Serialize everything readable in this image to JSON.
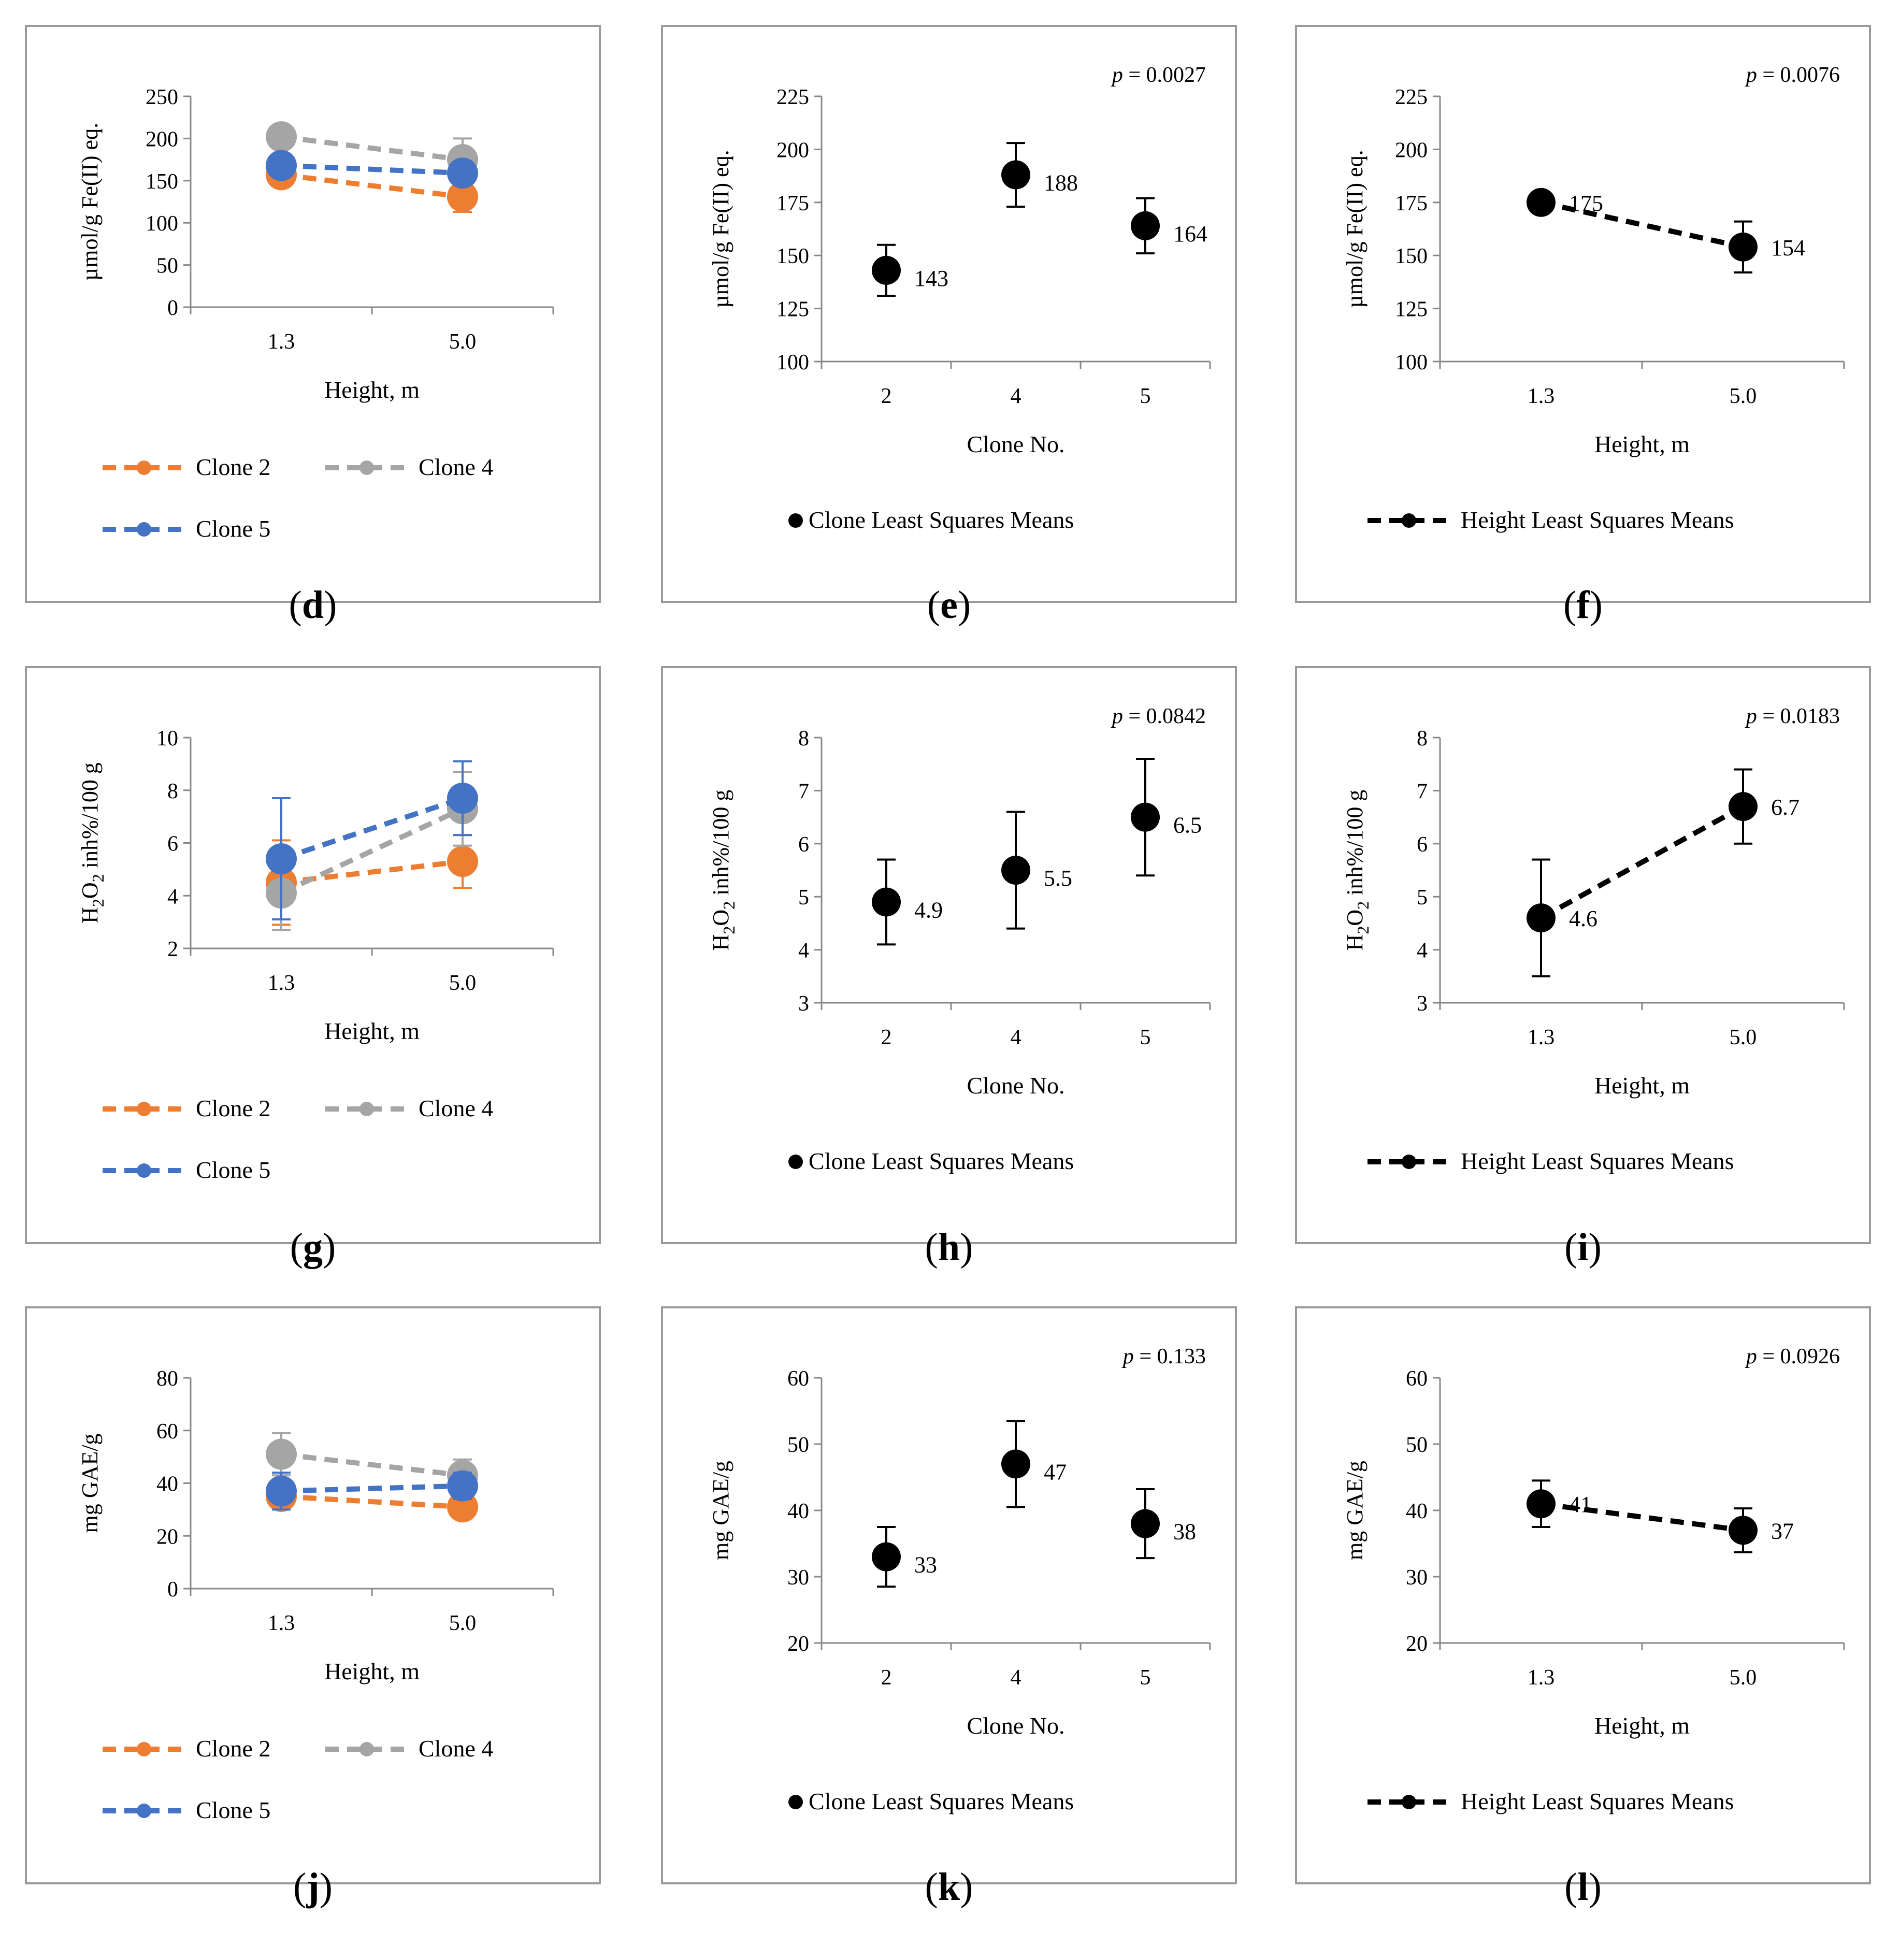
{
  "colors": {
    "clone2": "#ED7D31",
    "clone4": "#A5A5A5",
    "clone5": "#4472C4",
    "black": "#000000",
    "axis": "#888888",
    "frame": "#9a9a9a"
  },
  "chart_data": [
    {
      "id": "d",
      "type": "line",
      "caption": "d",
      "ylabel": "µmol/g Fe(II) eq.",
      "xlabel": "Height, m",
      "ylim": [
        0,
        250
      ],
      "yticks": [
        0,
        50,
        100,
        150,
        200,
        250
      ],
      "categories": [
        "1.3",
        "5.0"
      ],
      "pvalue": "",
      "series": [
        {
          "name": "Clone 2",
          "color": "#ED7D31",
          "values": [
            157,
            131
          ],
          "err": [
            10,
            18
          ]
        },
        {
          "name": "Clone 4",
          "color": "#A5A5A5",
          "values": [
            202,
            175
          ],
          "err": [
            10,
            25
          ]
        },
        {
          "name": "Clone 5",
          "color": "#4472C4",
          "values": [
            168,
            159
          ],
          "err": [
            10,
            12
          ]
        }
      ],
      "legend": [
        "Clone 2",
        "Clone 4",
        "Clone 5"
      ]
    },
    {
      "id": "e",
      "type": "scatter",
      "caption": "e",
      "ylabel": "µmol/g Fe(II) eq.",
      "xlabel": "Clone No.",
      "ylim": [
        100,
        225
      ],
      "yticks": [
        100,
        125,
        150,
        175,
        200,
        225
      ],
      "categories": [
        "2",
        "4",
        "5"
      ],
      "pvalue": "0.0027",
      "series": [
        {
          "name": "Clone Least Squares Means",
          "color": "#000000",
          "values": [
            143,
            188,
            164
          ],
          "err": [
            12,
            15,
            13
          ],
          "labels": [
            "143",
            "188",
            "164"
          ]
        }
      ],
      "legend": [
        "Clone Least Squares Means"
      ]
    },
    {
      "id": "f",
      "type": "line",
      "caption": "f",
      "ylabel": "µmol/g Fe(II) eq.",
      "xlabel": "Height, m",
      "ylim": [
        100,
        225
      ],
      "yticks": [
        100,
        125,
        150,
        175,
        200,
        225
      ],
      "categories": [
        "1.3",
        "5.0"
      ],
      "pvalue": "0.0076",
      "series": [
        {
          "name": "Height Least Squares Means",
          "color": "#000000",
          "values": [
            175,
            154
          ],
          "err": [
            0,
            12
          ],
          "labels": [
            "175",
            "154"
          ]
        }
      ],
      "legend": [
        "Height Least Squares Means"
      ]
    },
    {
      "id": "g",
      "type": "line",
      "caption": "g",
      "ylabel": "H2O2 inh%/100 g",
      "xlabel": "Height, m",
      "ylim": [
        2,
        10
      ],
      "yticks": [
        2,
        4,
        6,
        8,
        10
      ],
      "categories": [
        "1.3",
        "5.0"
      ],
      "pvalue": "",
      "series": [
        {
          "name": "Clone 2",
          "color": "#ED7D31",
          "values": [
            4.5,
            5.3
          ],
          "err": [
            1.6,
            1.0
          ]
        },
        {
          "name": "Clone 4",
          "color": "#A5A5A5",
          "values": [
            4.1,
            7.3
          ],
          "err": [
            1.4,
            1.4
          ]
        },
        {
          "name": "Clone 5",
          "color": "#4472C4",
          "values": [
            5.4,
            7.7
          ],
          "err": [
            2.3,
            1.4
          ]
        }
      ],
      "legend": [
        "Clone 2",
        "Clone 4",
        "Clone 5"
      ]
    },
    {
      "id": "h",
      "type": "scatter",
      "caption": "h",
      "ylabel": "H2O2 inh%/100 g",
      "xlabel": "Clone No.",
      "ylim": [
        3,
        8
      ],
      "yticks": [
        3,
        4,
        5,
        6,
        7,
        8
      ],
      "categories": [
        "2",
        "4",
        "5"
      ],
      "pvalue": "0.0842",
      "series": [
        {
          "name": "Clone Least Squares Means",
          "color": "#000000",
          "values": [
            4.9,
            5.5,
            6.5
          ],
          "err": [
            0.8,
            1.1,
            1.1
          ],
          "labels": [
            "4.9",
            "5.5",
            "6.5"
          ]
        }
      ],
      "legend": [
        "Clone Least Squares Means"
      ]
    },
    {
      "id": "i",
      "type": "line",
      "caption": "i",
      "ylabel": "H2O2 inh%/100 g",
      "xlabel": "Height, m",
      "ylim": [
        3,
        8
      ],
      "yticks": [
        3,
        4,
        5,
        6,
        7,
        8
      ],
      "categories": [
        "1.3",
        "5.0"
      ],
      "pvalue": "0.0183",
      "series": [
        {
          "name": "Height Least Squares Means",
          "color": "#000000",
          "values": [
            4.6,
            6.7
          ],
          "err": [
            1.1,
            0.7
          ],
          "labels": [
            "4.6",
            "6.7"
          ]
        }
      ],
      "legend": [
        "Height Least Squares Means"
      ]
    },
    {
      "id": "j",
      "type": "line",
      "caption": "j",
      "ylabel": "mg GAE/g",
      "xlabel": "Height, m",
      "ylim": [
        0,
        80
      ],
      "yticks": [
        0,
        20,
        40,
        60,
        80
      ],
      "categories": [
        "1.3",
        "5.0"
      ],
      "pvalue": "",
      "series": [
        {
          "name": "Clone 2",
          "color": "#ED7D31",
          "values": [
            35,
            31
          ],
          "err": [
            3,
            3
          ]
        },
        {
          "name": "Clone 4",
          "color": "#A5A5A5",
          "values": [
            51,
            43
          ],
          "err": [
            8,
            6
          ]
        },
        {
          "name": "Clone 5",
          "color": "#4472C4",
          "values": [
            37,
            39
          ],
          "err": [
            7,
            5
          ]
        }
      ],
      "legend": [
        "Clone 2",
        "Clone 4",
        "Clone 5"
      ]
    },
    {
      "id": "k",
      "type": "scatter",
      "caption": "k",
      "ylabel": "mg GAE/g",
      "xlabel": "Clone No.",
      "ylim": [
        20,
        60
      ],
      "yticks": [
        20,
        30,
        40,
        50,
        60
      ],
      "categories": [
        "2",
        "4",
        "5"
      ],
      "pvalue": "0.133",
      "series": [
        {
          "name": "Clone Least Squares Means",
          "color": "#000000",
          "values": [
            33,
            47,
            38
          ],
          "err": [
            4.5,
            6.5,
            5.2
          ],
          "labels": [
            "33",
            "47",
            "38"
          ]
        }
      ],
      "legend": [
        "Clone Least Squares Means"
      ]
    },
    {
      "id": "l",
      "type": "line",
      "caption": "l",
      "ylabel": "mg GAE/g",
      "xlabel": "Height, m",
      "ylim": [
        20,
        60
      ],
      "yticks": [
        20,
        30,
        40,
        50,
        60
      ],
      "categories": [
        "1.3",
        "5.0"
      ],
      "pvalue": "0.0926",
      "series": [
        {
          "name": "Height Least Squares Means",
          "color": "#000000",
          "values": [
            41,
            37
          ],
          "err": [
            3.5,
            3.3
          ],
          "labels": [
            "41",
            "37"
          ]
        }
      ],
      "legend": [
        "Height Least Squares Means"
      ]
    }
  ]
}
